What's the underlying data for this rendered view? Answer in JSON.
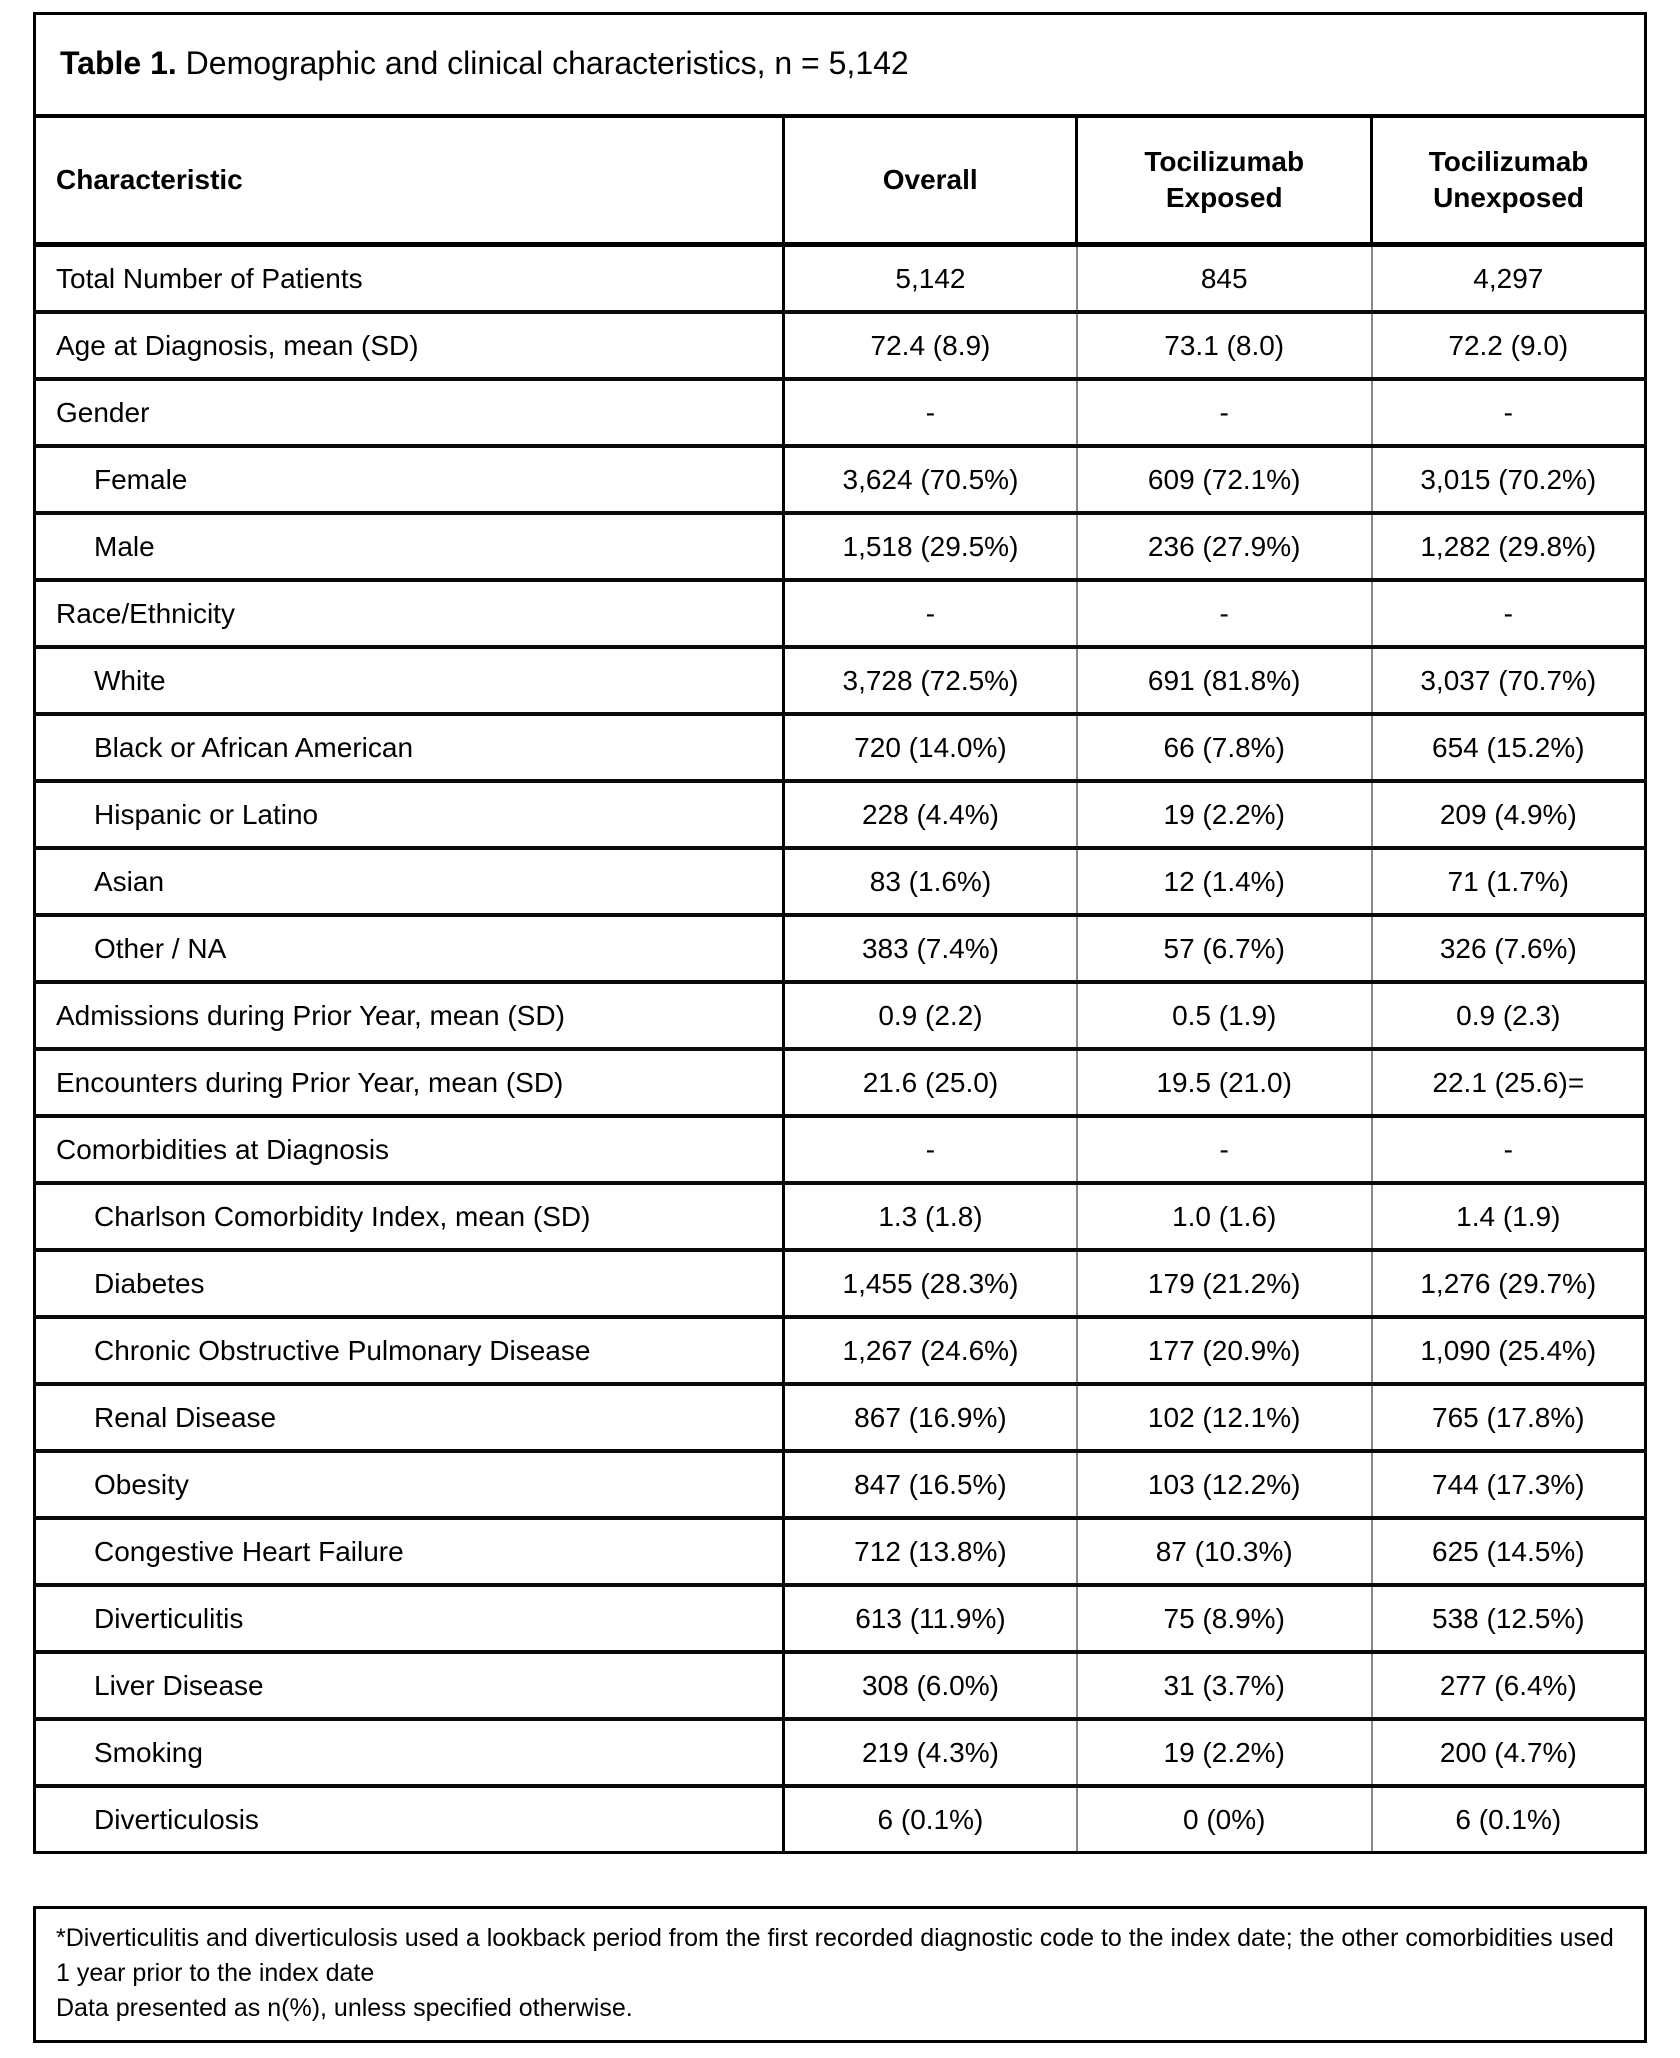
{
  "table": {
    "title_bold": "Table 1.",
    "title_rest": "Demographic and clinical characteristics, n = 5,142",
    "columns": [
      "Characteristic",
      "Overall",
      "Tocilizumab Exposed",
      "Tocilizumab Unexposed"
    ],
    "rows": [
      {
        "label": "Total Number of Patients",
        "indent": false,
        "values": [
          "5,142",
          "845",
          "4,297"
        ]
      },
      {
        "label": "Age at Diagnosis, mean (SD)",
        "indent": false,
        "values": [
          "72.4 (8.9)",
          "73.1 (8.0)",
          "72.2 (9.0)"
        ]
      },
      {
        "label": "Gender",
        "indent": false,
        "values": [
          "-",
          "-",
          "-"
        ]
      },
      {
        "label": "Female",
        "indent": true,
        "values": [
          "3,624 (70.5%)",
          "609 (72.1%)",
          "3,015 (70.2%)"
        ]
      },
      {
        "label": "Male",
        "indent": true,
        "values": [
          "1,518 (29.5%)",
          "236 (27.9%)",
          "1,282 (29.8%)"
        ]
      },
      {
        "label": "Race/Ethnicity",
        "indent": false,
        "values": [
          "-",
          "-",
          "-"
        ]
      },
      {
        "label": "White",
        "indent": true,
        "values": [
          "3,728 (72.5%)",
          "691 (81.8%)",
          "3,037 (70.7%)"
        ]
      },
      {
        "label": "Black or African American",
        "indent": true,
        "values": [
          "720 (14.0%)",
          "66 (7.8%)",
          "654 (15.2%)"
        ]
      },
      {
        "label": "Hispanic or Latino",
        "indent": true,
        "values": [
          "228 (4.4%)",
          "19 (2.2%)",
          "209 (4.9%)"
        ]
      },
      {
        "label": "Asian",
        "indent": true,
        "values": [
          "83 (1.6%)",
          "12 (1.4%)",
          "71 (1.7%)"
        ]
      },
      {
        "label": "Other / NA",
        "indent": true,
        "values": [
          "383 (7.4%)",
          "57 (6.7%)",
          "326 (7.6%)"
        ]
      },
      {
        "label": "Admissions during Prior Year, mean (SD)",
        "indent": false,
        "values": [
          "0.9 (2.2)",
          "0.5 (1.9)",
          "0.9 (2.3)"
        ]
      },
      {
        "label": "Encounters during Prior Year, mean (SD)",
        "indent": false,
        "values": [
          "21.6 (25.0)",
          "19.5 (21.0)",
          "22.1 (25.6)="
        ]
      },
      {
        "label": "Comorbidities at Diagnosis",
        "indent": false,
        "values": [
          "-",
          "-",
          "-"
        ]
      },
      {
        "label": "Charlson Comorbidity Index, mean (SD)",
        "indent": true,
        "values": [
          "1.3 (1.8)",
          "1.0 (1.6)",
          "1.4 (1.9)"
        ]
      },
      {
        "label": "Diabetes",
        "indent": true,
        "values": [
          "1,455 (28.3%)",
          "179 (21.2%)",
          "1,276 (29.7%)"
        ]
      },
      {
        "label": "Chronic Obstructive Pulmonary Disease",
        "indent": true,
        "values": [
          "1,267 (24.6%)",
          "177 (20.9%)",
          "1,090 (25.4%)"
        ]
      },
      {
        "label": "Renal Disease",
        "indent": true,
        "values": [
          "867 (16.9%)",
          "102 (12.1%)",
          "765 (17.8%)"
        ]
      },
      {
        "label": "Obesity",
        "indent": true,
        "values": [
          "847 (16.5%)",
          "103 (12.2%)",
          "744 (17.3%)"
        ]
      },
      {
        "label": "Congestive Heart Failure",
        "indent": true,
        "values": [
          "712 (13.8%)",
          "87 (10.3%)",
          "625 (14.5%)"
        ]
      },
      {
        "label": "Diverticulitis",
        "indent": true,
        "values": [
          "613 (11.9%)",
          "75 (8.9%)",
          "538 (12.5%)"
        ]
      },
      {
        "label": "Liver Disease",
        "indent": true,
        "values": [
          "308 (6.0%)",
          "31 (3.7%)",
          "277 (6.4%)"
        ]
      },
      {
        "label": "Smoking",
        "indent": true,
        "values": [
          "219 (4.3%)",
          "19 (2.2%)",
          "200 (4.7%)"
        ]
      },
      {
        "label": "Diverticulosis",
        "indent": true,
        "values": [
          "6 (0.1%)",
          "0 (0%)",
          "6 (0.1%)"
        ]
      }
    ]
  },
  "footnote": {
    "lines": [
      "*Diverticulitis and diverticulosis used a lookback period from the first recorded diagnostic code to the index date; the other comorbidities used 1 year prior to the index date",
      "Data presented as n(%), unless specified otherwise."
    ]
  },
  "colors": {
    "border": "#000000",
    "grid_light": "#888888",
    "text": "#000000",
    "background": "#ffffff"
  }
}
